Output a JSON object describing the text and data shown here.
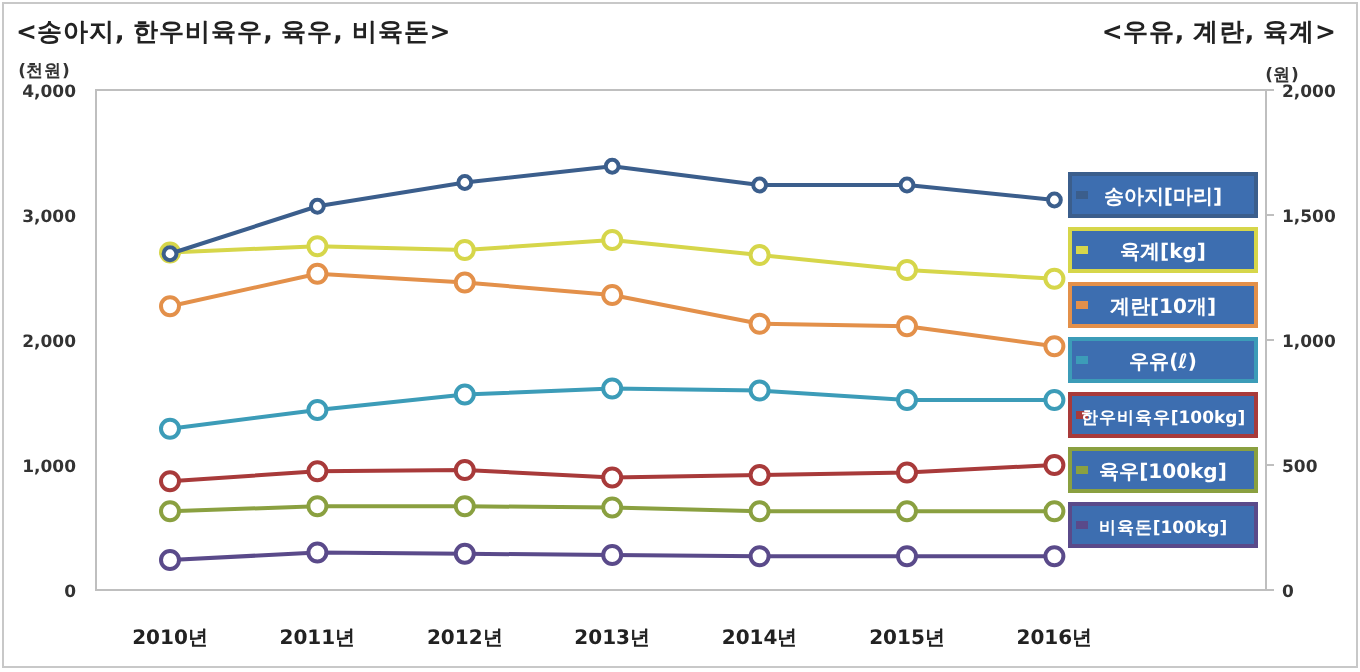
{
  "chart_data": {
    "type": "line",
    "title": "<송아지, 한우비육우, 육우, 비육돈>",
    "subtitle": "<우유, 계란, 육계>",
    "ylabel": "(천원)",
    "y2label": "(원)",
    "categories": [
      "2010년",
      "2011년",
      "2012년",
      "2013년",
      "2014년",
      "2015년",
      "2016년"
    ],
    "ylim": [
      0,
      4000
    ],
    "yticks": [
      {
        "value": 0,
        "label": "0"
      },
      {
        "value": 1000,
        "label": "1,000"
      },
      {
        "value": 2000,
        "label": "2,000"
      },
      {
        "value": 3000,
        "label": "3,000"
      },
      {
        "value": 4000,
        "label": "4,000"
      }
    ],
    "y2lim": [
      0,
      2000
    ],
    "y2ticks": [
      {
        "value": 0,
        "label": "0"
      },
      {
        "value": 500,
        "label": "500"
      },
      {
        "value": 1000,
        "label": "1,000"
      },
      {
        "value": 1500,
        "label": "1,500"
      },
      {
        "value": 2000,
        "label": "2,000"
      }
    ],
    "marker": "circle",
    "line_style": "solid",
    "legend": "right",
    "series": [
      {
        "name": "송아지[마리]",
        "color": "#3b5e8c",
        "values": [
          2690,
          3070,
          3260,
          3390,
          3240,
          3240,
          3120
        ]
      },
      {
        "name": "육계[kg]",
        "color": "#d6d64a",
        "axis": "y2",
        "values": [
          1350,
          1375,
          1360,
          1400,
          1340,
          1280,
          1245
        ]
      },
      {
        "name": "계란[10개]",
        "color": "#e3904a",
        "axis": "y2",
        "values": [
          1135,
          1265,
          1230,
          1180,
          1065,
          1055,
          975
        ]
      },
      {
        "name": "우유(ℓ)",
        "color": "#3c9cb8",
        "axis": "y2",
        "values": [
          645,
          720,
          782,
          806,
          798,
          760,
          760
        ]
      },
      {
        "name": "한우비육우[100kg]",
        "color": "#a83a3a",
        "values": [
          870,
          950,
          960,
          900,
          920,
          940,
          1000
        ]
      },
      {
        "name": "육우[100kg]",
        "color": "#8aa040",
        "values": [
          630,
          670,
          670,
          660,
          630,
          630,
          630
        ]
      },
      {
        "name": "비육돈[100kg]",
        "color": "#5a4a8a",
        "values": [
          240,
          300,
          290,
          280,
          270,
          270,
          270
        ]
      }
    ]
  }
}
